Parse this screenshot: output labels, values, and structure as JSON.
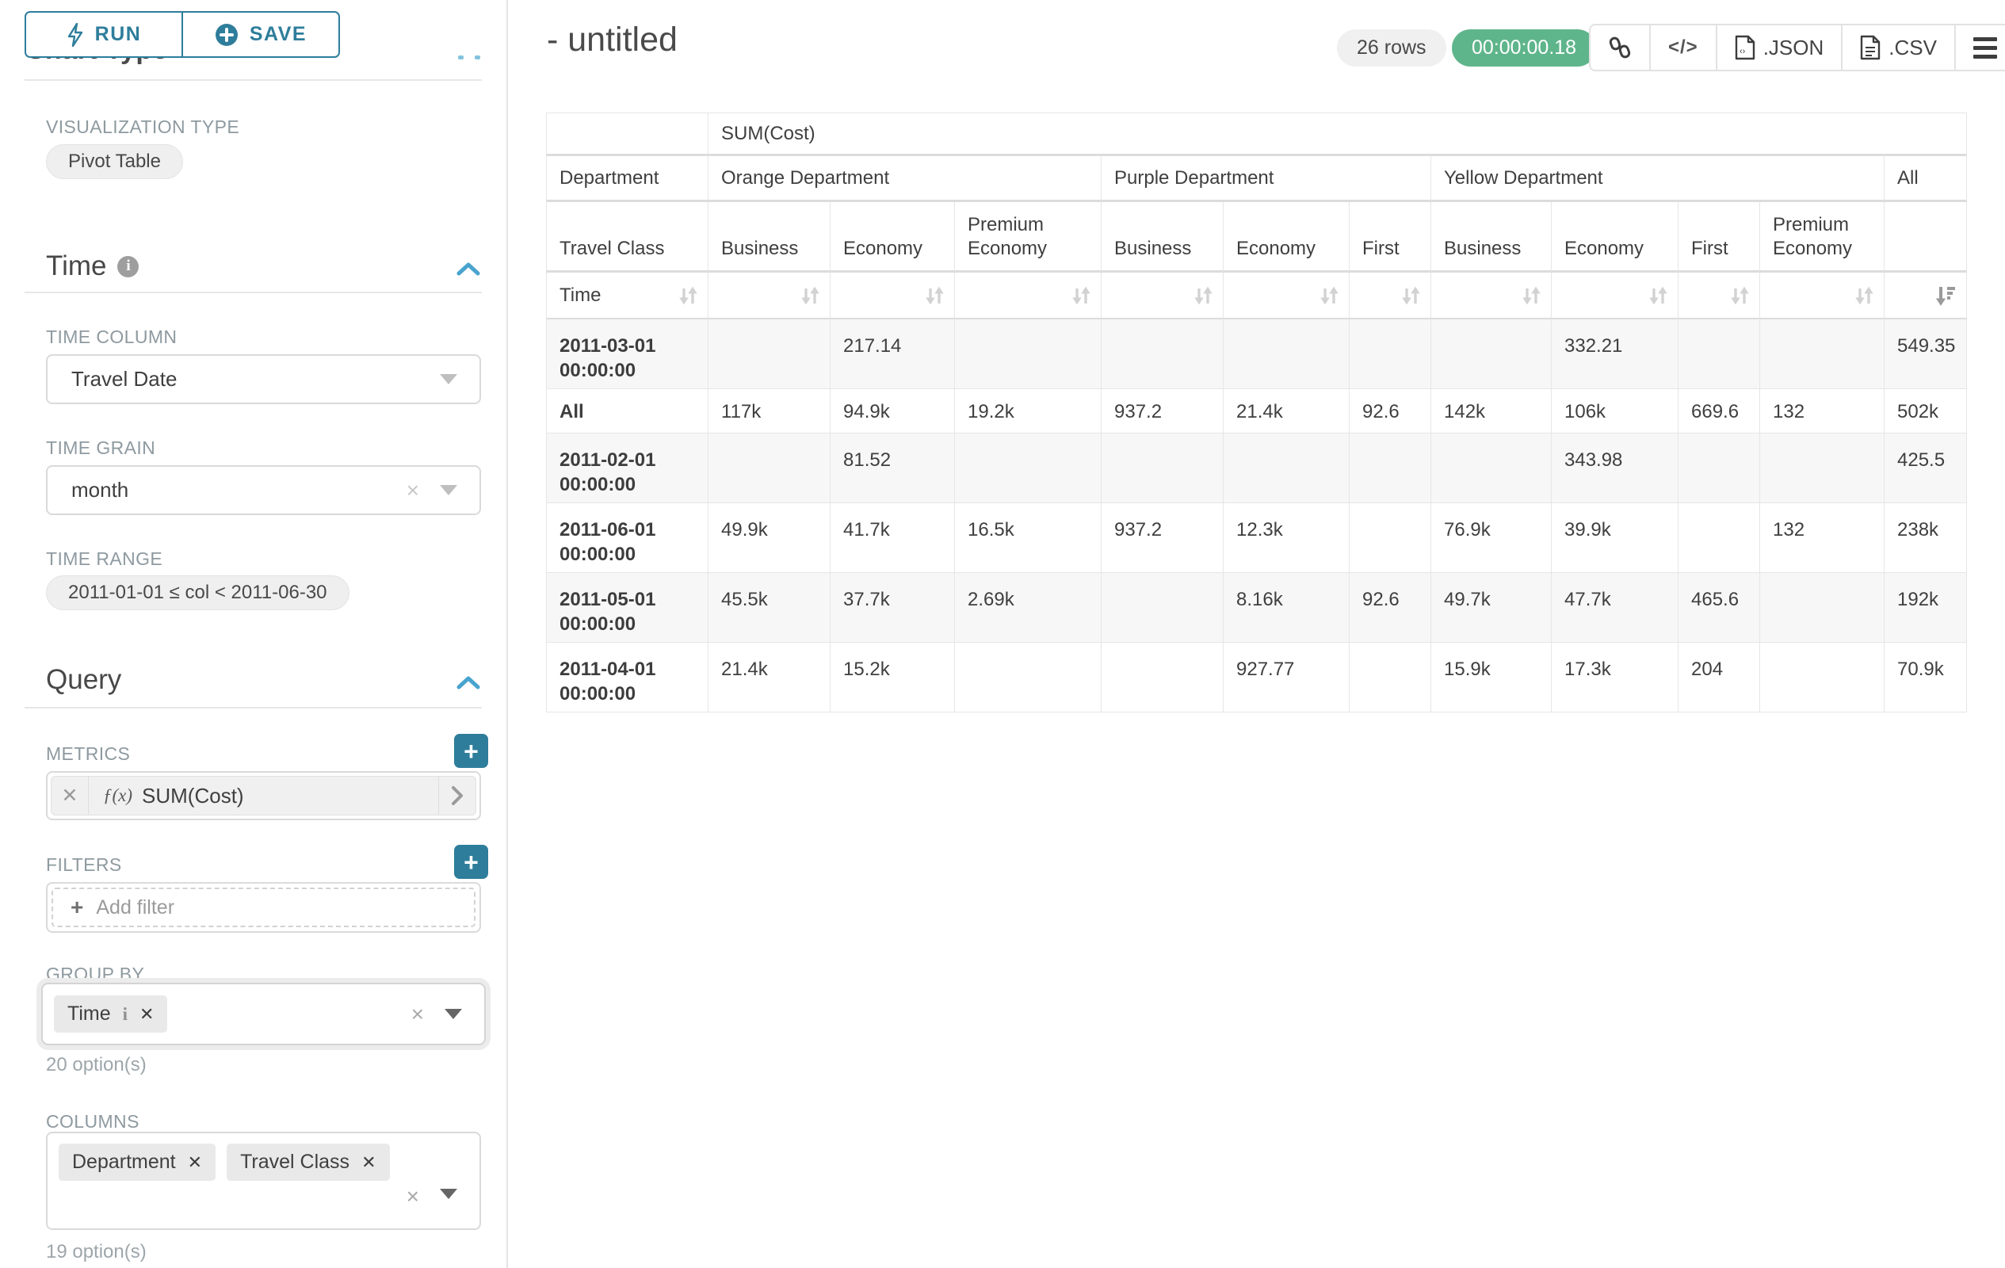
{
  "colors": {
    "accent_teal": "#2e7d9b",
    "chevron_blue": "#48a4ce",
    "timer_green": "#5fb58b",
    "badge_gray": "#f0f0f0",
    "stripe": "#f7f7f7"
  },
  "sidebar": {
    "run_label": "RUN",
    "save_label": "SAVE",
    "chart_type_heading": "Chart Type",
    "viz_type_label": "VISUALIZATION TYPE",
    "viz_type_value": "Pivot Table",
    "time_section_title": "Time",
    "time_column_label": "TIME COLUMN",
    "time_column_value": "Travel Date",
    "time_grain_label": "TIME GRAIN",
    "time_grain_value": "month",
    "time_range_label": "TIME RANGE",
    "time_range_value": "2011-01-01 ≤ col < 2011-06-30",
    "query_section_title": "Query",
    "metrics_label": "METRICS",
    "metric_fx": "ƒ(x)",
    "metric_name": "SUM(Cost)",
    "filters_label": "FILTERS",
    "add_filter_label": "Add filter",
    "group_by_label": "GROUP BY",
    "group_by_chip": "Time",
    "group_by_helper": "20 option(s)",
    "columns_label": "COLUMNS",
    "columns_chips": [
      "Department",
      "Travel Class"
    ],
    "columns_helper": "19 option(s)"
  },
  "header": {
    "title": "- untitled",
    "rows_badge": "26 rows",
    "timer": "00:00:00.18",
    "json_label": ".JSON",
    "csv_label": ".CSV"
  },
  "table": {
    "metric_header": "SUM(Cost)",
    "corner_label": "Department",
    "row_dim_label": "Travel Class",
    "time_label": "Time",
    "col_groups": [
      {
        "label": "Orange Department",
        "cols": [
          "Business",
          "Economy",
          "Premium Economy"
        ]
      },
      {
        "label": "Purple Department",
        "cols": [
          "Business",
          "Economy",
          "First"
        ]
      },
      {
        "label": "Yellow Department",
        "cols": [
          "Business",
          "Economy",
          "First",
          "Premium Economy"
        ]
      },
      {
        "label": "All",
        "cols": [
          ""
        ]
      }
    ],
    "rows": [
      {
        "label": "2011-03-01 00:00:00",
        "values": [
          "",
          "217.14",
          "",
          "",
          "",
          "",
          "",
          "332.21",
          "",
          "",
          "549.35"
        ]
      },
      {
        "label": "All",
        "values": [
          "117k",
          "94.9k",
          "19.2k",
          "937.2",
          "21.4k",
          "92.6",
          "142k",
          "106k",
          "669.6",
          "132",
          "502k"
        ]
      },
      {
        "label": "2011-02-01 00:00:00",
        "values": [
          "",
          "81.52",
          "",
          "",
          "",
          "",
          "",
          "343.98",
          "",
          "",
          "425.5"
        ]
      },
      {
        "label": "2011-06-01 00:00:00",
        "values": [
          "49.9k",
          "41.7k",
          "16.5k",
          "937.2",
          "12.3k",
          "",
          "76.9k",
          "39.9k",
          "",
          "132",
          "238k"
        ]
      },
      {
        "label": "2011-05-01 00:00:00",
        "values": [
          "45.5k",
          "37.7k",
          "2.69k",
          "",
          "8.16k",
          "92.6",
          "49.7k",
          "47.7k",
          "465.6",
          "",
          "192k"
        ]
      },
      {
        "label": "2011-04-01 00:00:00",
        "values": [
          "21.4k",
          "15.2k",
          "",
          "",
          "927.77",
          "",
          "15.9k",
          "17.3k",
          "204",
          "",
          "70.9k"
        ]
      }
    ]
  }
}
